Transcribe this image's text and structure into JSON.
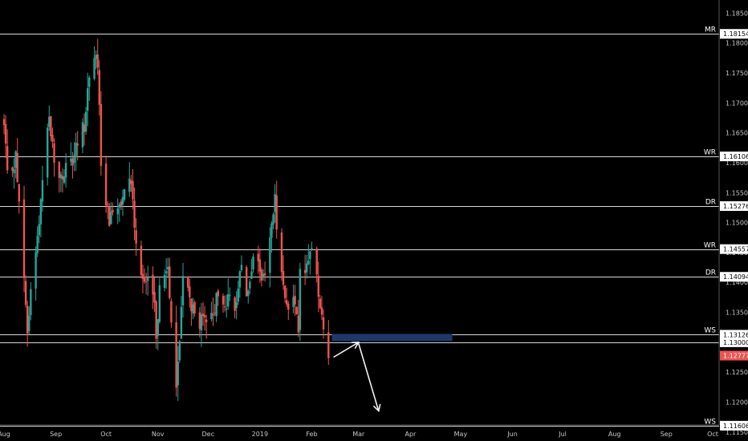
{
  "chart_data": {
    "type": "candlestick",
    "title": "",
    "xlabel": "",
    "ylabel": "",
    "ylim": [
      1.1135,
      1.1872
    ],
    "x_ticks": [
      "Aug",
      "Sep",
      "Oct",
      "Nov",
      "Dec",
      "2019",
      "Feb",
      "Mar",
      "Apr",
      "May",
      "Jun",
      "Jul",
      "Aug",
      "Sep",
      "Oct"
    ],
    "y_ticks": [
      "1.18500",
      "1.18000",
      "1.17500",
      "1.17000",
      "1.16500",
      "1.16000",
      "1.15500",
      "1.15000",
      "1.14500",
      "1.14000",
      "1.13500",
      "1.13000",
      "1.12500",
      "1.12000",
      "1.11500"
    ],
    "levels": [
      {
        "label": "MR",
        "price": "1.18154",
        "value": 1.18154
      },
      {
        "label": "WR",
        "price": "1.16106",
        "value": 1.16106
      },
      {
        "label": "DR",
        "price": "1.15276",
        "value": 1.15276
      },
      {
        "label": "WR",
        "price": "1.14557",
        "value": 1.14557
      },
      {
        "label": "DR",
        "price": "1.14094",
        "value": 1.14094
      },
      {
        "label": "WS",
        "price": "1.13126",
        "value": 1.13126
      },
      {
        "label": "",
        "price": "1.13000",
        "value": 1.13
      },
      {
        "label": "WS",
        "price": "1.11606",
        "value": 1.11606
      }
    ],
    "last_price": {
      "price": "1.12777",
      "value": 1.12777
    },
    "zone": {
      "low": 1.1302,
      "high": 1.1314,
      "start": "2019-02-13",
      "end": "2019-04-26"
    },
    "arrows": [
      {
        "from": {
          "date": "2019-02-14",
          "value": 1.1275
        },
        "to": {
          "date": "2019-03-01",
          "value": 1.13
        }
      },
      {
        "from": {
          "date": "2019-03-01",
          "value": 1.1298
        },
        "to": {
          "date": "2019-03-13",
          "value": 1.1185
        }
      }
    ],
    "colors": {
      "up": "#26a69a",
      "down": "#ef5350",
      "background": "#000000",
      "level_line": "#d8d8d8",
      "zone": "#1b3a6b",
      "arrow": "#ffffff",
      "last_price_tag": "#ef5350"
    },
    "anchors": [
      [
        "2018-08-01",
        1.166
      ],
      [
        "2018-08-03",
        1.1575
      ],
      [
        "2018-08-08",
        1.161
      ],
      [
        "2018-08-13",
        1.14
      ],
      [
        "2018-08-15",
        1.131
      ],
      [
        "2018-08-17",
        1.139
      ],
      [
        "2018-08-20",
        1.144
      ],
      [
        "2018-08-24",
        1.158
      ],
      [
        "2018-08-28",
        1.168
      ],
      [
        "2018-08-31",
        1.16
      ],
      [
        "2018-09-04",
        1.1575
      ],
      [
        "2018-09-10",
        1.1595
      ],
      [
        "2018-09-14",
        1.163
      ],
      [
        "2018-09-18",
        1.1665
      ],
      [
        "2018-09-21",
        1.175
      ],
      [
        "2018-09-24",
        1.178
      ],
      [
        "2018-09-26",
        1.176
      ],
      [
        "2018-09-28",
        1.1605
      ],
      [
        "2018-10-03",
        1.15
      ],
      [
        "2018-10-05",
        1.152
      ],
      [
        "2018-10-10",
        1.154
      ],
      [
        "2018-10-12",
        1.157
      ],
      [
        "2018-10-16",
        1.1575
      ],
      [
        "2018-10-19",
        1.1465
      ],
      [
        "2018-10-24",
        1.14
      ],
      [
        "2018-10-29",
        1.1385
      ],
      [
        "2018-10-31",
        1.132
      ],
      [
        "2018-11-02",
        1.1385
      ],
      [
        "2018-11-07",
        1.143
      ],
      [
        "2018-11-09",
        1.134
      ],
      [
        "2018-11-12",
        1.123
      ],
      [
        "2018-11-14",
        1.13
      ],
      [
        "2018-11-16",
        1.142
      ],
      [
        "2018-11-20",
        1.137
      ],
      [
        "2018-11-23",
        1.134
      ],
      [
        "2018-11-28",
        1.133
      ],
      [
        "2018-12-04",
        1.134
      ],
      [
        "2018-12-06",
        1.1375
      ],
      [
        "2018-12-10",
        1.136
      ],
      [
        "2018-12-13",
        1.137
      ],
      [
        "2018-12-17",
        1.135
      ],
      [
        "2018-12-20",
        1.143
      ],
      [
        "2018-12-24",
        1.1385
      ],
      [
        "2018-12-28",
        1.1445
      ],
      [
        "2019-01-03",
        1.14
      ],
      [
        "2019-01-07",
        1.147
      ],
      [
        "2019-01-10",
        1.154
      ],
      [
        "2019-01-11",
        1.148
      ],
      [
        "2019-01-15",
        1.14
      ],
      [
        "2019-01-18",
        1.1365
      ],
      [
        "2019-01-22",
        1.136
      ],
      [
        "2019-01-24",
        1.132
      ],
      [
        "2019-01-25",
        1.141
      ],
      [
        "2019-01-29",
        1.143
      ],
      [
        "2019-01-31",
        1.1455
      ],
      [
        "2019-02-01",
        1.145
      ],
      [
        "2019-02-04",
        1.141
      ],
      [
        "2019-02-07",
        1.134
      ],
      [
        "2019-02-08",
        1.132
      ],
      [
        "2019-02-11",
        1.1278
      ]
    ]
  }
}
